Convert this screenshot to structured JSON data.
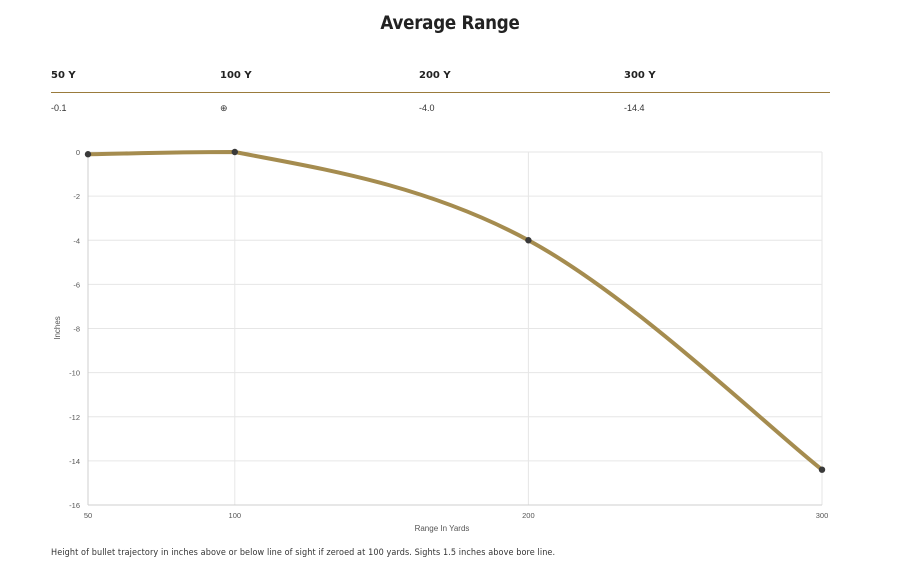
{
  "title": "Average Range",
  "table": {
    "headers": [
      "50 Y",
      "100 Y",
      "200 Y",
      "300 Y"
    ],
    "values": [
      "-0.1",
      "⊕",
      "-4.0",
      "-14.4"
    ]
  },
  "footnote": "Height of bullet trajectory in inches above or below line of sight if zeroed at 100 yards. Sights 1.5 inches above bore line.",
  "colors": {
    "line": "#a58c4f",
    "point": "#3a3a3a",
    "rule": "#9a7b3c",
    "grid": "#e6e6e6"
  },
  "chart_data": {
    "type": "line",
    "xlabel": "Range In Yards",
    "ylabel": "Inches",
    "x": [
      50,
      100,
      200,
      300
    ],
    "xticks": [
      50,
      100,
      200,
      300
    ],
    "yticks": [
      0,
      -2,
      -4,
      -6,
      -8,
      -10,
      -12,
      -14,
      -16
    ],
    "xlim": [
      50,
      300
    ],
    "ylim": [
      -16,
      0
    ],
    "series": [
      {
        "values": [
          -0.1,
          0,
          -4.0,
          -14.4
        ]
      }
    ],
    "grid": true
  }
}
